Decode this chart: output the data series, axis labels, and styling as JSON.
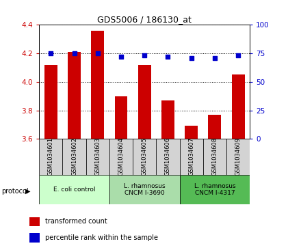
{
  "title": "GDS5006 / 186130_at",
  "samples": [
    "GSM1034601",
    "GSM1034602",
    "GSM1034603",
    "GSM1034604",
    "GSM1034605",
    "GSM1034606",
    "GSM1034607",
    "GSM1034608",
    "GSM1034609"
  ],
  "transformed_counts": [
    4.12,
    4.21,
    4.36,
    3.9,
    4.12,
    3.87,
    3.69,
    3.77,
    4.05
  ],
  "percentile_ranks": [
    75,
    75,
    75,
    72,
    73,
    72,
    71,
    71,
    73
  ],
  "ylim_left": [
    3.6,
    4.4
  ],
  "ylim_right": [
    0,
    100
  ],
  "yticks_left": [
    3.6,
    3.8,
    4.0,
    4.2,
    4.4
  ],
  "yticks_right": [
    0,
    25,
    50,
    75,
    100
  ],
  "bar_color": "#cc0000",
  "dot_color": "#0000cc",
  "group_colors": [
    "#ccffcc",
    "#aaddaa",
    "#55bb55"
  ],
  "group_labels": [
    "E. coli control",
    "L. rhamnosus\nCNCM I-3690",
    "L. rhamnosus\nCNCM I-4317"
  ],
  "group_starts": [
    0,
    3,
    6
  ],
  "group_ends": [
    3,
    6,
    9
  ],
  "legend_items": [
    {
      "color": "#cc0000",
      "label": "transformed count"
    },
    {
      "color": "#0000cc",
      "label": "percentile rank within the sample"
    }
  ],
  "tick_label_color_left": "#cc0000",
  "tick_label_color_right": "#0000cc"
}
